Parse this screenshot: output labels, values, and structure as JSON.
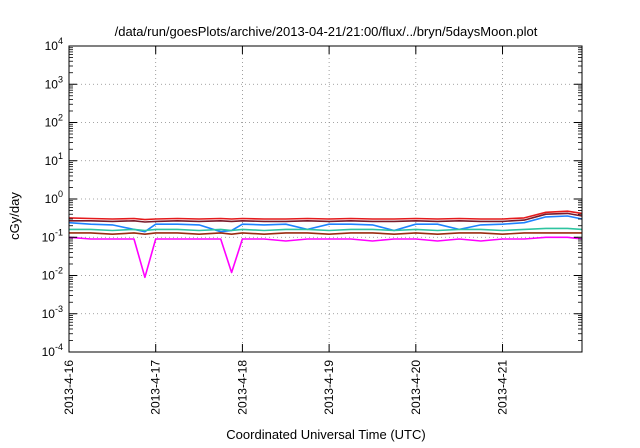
{
  "chart_data": {
    "type": "line",
    "title": "/data/run/goesPlots/archive/2013-04-21/21:00/flux/../bryn/5daysMoon.plot",
    "xlabel": "Coordinated Universal Time (UTC)",
    "ylabel": "cGy/day",
    "yscale": "log",
    "ylim": [
      0.0001,
      10000
    ],
    "xlim": [
      "2013-04-16T00:00",
      "2013-04-21T22:00"
    ],
    "grid": true,
    "legend": "none",
    "x_ticks": [
      "2013-4-16",
      "2013-4-17",
      "2013-4-18",
      "2013-4-19",
      "2013-4-20",
      "2013-4-21"
    ],
    "y_ticks": [
      {
        "base": "10",
        "exp": "-4",
        "value": 0.0001
      },
      {
        "base": "10",
        "exp": "-3",
        "value": 0.001
      },
      {
        "base": "10",
        "exp": "-2",
        "value": 0.01
      },
      {
        "base": "10",
        "exp": "-1",
        "value": 0.1
      },
      {
        "base": "10",
        "exp": "0",
        "value": 1
      },
      {
        "base": "10",
        "exp": "1",
        "value": 10
      },
      {
        "base": "10",
        "exp": "2",
        "value": 100
      },
      {
        "base": "10",
        "exp": "3",
        "value": 1000
      },
      {
        "base": "10",
        "exp": "4",
        "value": 10000
      }
    ],
    "x": [
      "2013-04-16T00:00",
      "2013-04-16T06:00",
      "2013-04-16T12:00",
      "2013-04-16T18:00",
      "2013-04-16T21:00",
      "2013-04-17T00:00",
      "2013-04-17T06:00",
      "2013-04-17T12:00",
      "2013-04-17T18:00",
      "2013-04-17T21:00",
      "2013-04-18T00:00",
      "2013-04-18T06:00",
      "2013-04-18T12:00",
      "2013-04-18T18:00",
      "2013-04-19T00:00",
      "2013-04-19T06:00",
      "2013-04-19T12:00",
      "2013-04-19T18:00",
      "2013-04-20T00:00",
      "2013-04-20T06:00",
      "2013-04-20T12:00",
      "2013-04-20T18:00",
      "2013-04-21T00:00",
      "2013-04-21T06:00",
      "2013-04-21T12:00",
      "2013-04-21T18:00",
      "2013-04-21T22:00"
    ],
    "series": [
      {
        "color": "#e41a1c",
        "values": [
          0.32,
          0.31,
          0.3,
          0.31,
          0.29,
          0.3,
          0.31,
          0.3,
          0.31,
          0.3,
          0.31,
          0.3,
          0.3,
          0.31,
          0.3,
          0.31,
          0.3,
          0.3,
          0.31,
          0.3,
          0.31,
          0.3,
          0.3,
          0.32,
          0.45,
          0.48,
          0.42
        ]
      },
      {
        "color": "#7a1a2a",
        "values": [
          0.27,
          0.27,
          0.26,
          0.27,
          0.25,
          0.26,
          0.27,
          0.26,
          0.27,
          0.26,
          0.27,
          0.26,
          0.26,
          0.27,
          0.26,
          0.27,
          0.26,
          0.26,
          0.27,
          0.26,
          0.27,
          0.26,
          0.26,
          0.28,
          0.4,
          0.42,
          0.36
        ]
      },
      {
        "color": "#1e82ff",
        "values": [
          0.24,
          0.22,
          0.21,
          0.16,
          0.14,
          0.22,
          0.22,
          0.21,
          0.14,
          0.15,
          0.22,
          0.21,
          0.22,
          0.16,
          0.22,
          0.22,
          0.21,
          0.15,
          0.22,
          0.22,
          0.16,
          0.21,
          0.22,
          0.24,
          0.34,
          0.36,
          0.3
        ]
      },
      {
        "color": "#2ec4a0",
        "values": [
          0.16,
          0.16,
          0.15,
          0.16,
          0.15,
          0.16,
          0.16,
          0.15,
          0.16,
          0.15,
          0.16,
          0.15,
          0.16,
          0.16,
          0.15,
          0.16,
          0.16,
          0.15,
          0.16,
          0.15,
          0.16,
          0.16,
          0.15,
          0.16,
          0.17,
          0.17,
          0.16
        ]
      },
      {
        "color": "#9a2c10",
        "values": [
          0.13,
          0.13,
          0.12,
          0.13,
          0.12,
          0.13,
          0.13,
          0.12,
          0.13,
          0.12,
          0.13,
          0.12,
          0.13,
          0.13,
          0.12,
          0.13,
          0.13,
          0.12,
          0.13,
          0.12,
          0.13,
          0.13,
          0.12,
          0.13,
          0.13,
          0.13,
          0.13
        ]
      },
      {
        "color": "#ff00ff",
        "values": [
          0.1,
          0.09,
          0.09,
          0.09,
          0.009,
          0.09,
          0.09,
          0.09,
          0.09,
          0.012,
          0.09,
          0.09,
          0.08,
          0.09,
          0.09,
          0.09,
          0.08,
          0.09,
          0.09,
          0.08,
          0.09,
          0.08,
          0.09,
          0.09,
          0.1,
          0.1,
          0.09
        ]
      }
    ]
  }
}
